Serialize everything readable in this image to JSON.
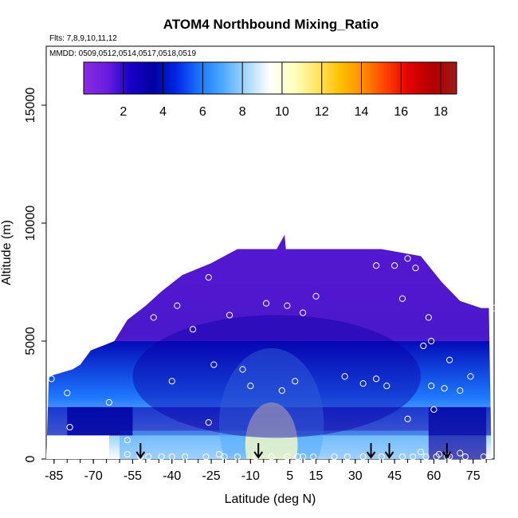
{
  "chart_data": {
    "type": "heatmap",
    "title": "ATOM4 Northbound Mixing_Ratio",
    "subtitle_flights": "Flts: 7,8,9,10,11,12",
    "subtitle_dates": "MMDD: 0509,0512,0514,0517,0518,0519",
    "xlabel": "Latitude (deg N)",
    "ylabel": "Altitude (m)",
    "xlim": [
      -88,
      83
    ],
    "ylim": [
      0,
      17500
    ],
    "x_ticks": [
      -85,
      -70,
      -55,
      -40,
      -25,
      -10,
      5,
      15,
      30,
      45,
      60,
      75
    ],
    "x_minor_step": 5,
    "y_ticks": [
      0,
      5000,
      10000,
      15000
    ],
    "colorbar": {
      "range": [
        0,
        18.8
      ],
      "ticks": [
        2,
        4,
        6,
        8,
        10,
        12,
        14,
        16,
        18
      ],
      "colors": [
        "#8a2be2",
        "#6a1de0",
        "#1a00c8",
        "#0000a0",
        "#0028e8",
        "#1e78ff",
        "#50aaff",
        "#a8d8ff",
        "#ffffff",
        "#ffffc0",
        "#ffe566",
        "#ffc000",
        "#ff8c00",
        "#ff3c00",
        "#e00000",
        "#b00000",
        "#a01a1a"
      ]
    },
    "envelope_top": [
      [
        -88,
        0
      ],
      [
        -87,
        3500
      ],
      [
        -78,
        3800
      ],
      [
        -75,
        4000
      ],
      [
        -71,
        4600
      ],
      [
        -62,
        5000
      ],
      [
        -57,
        5900
      ],
      [
        -50,
        6500
      ],
      [
        -44,
        7100
      ],
      [
        -36,
        7800
      ],
      [
        -25,
        8300
      ],
      [
        -15,
        8900
      ],
      [
        0,
        8900
      ],
      [
        3,
        9500
      ],
      [
        3.5,
        8900
      ],
      [
        20,
        8900
      ],
      [
        40,
        8900
      ],
      [
        55,
        8600
      ],
      [
        63,
        7500
      ],
      [
        70,
        6700
      ],
      [
        78,
        6400
      ],
      [
        81,
        6400
      ],
      [
        82,
        0
      ]
    ],
    "observations": [
      [
        -86,
        3400
      ],
      [
        -80,
        2800
      ],
      [
        -79,
        1350
      ],
      [
        -64,
        2400
      ],
      [
        -57,
        800
      ],
      [
        -57,
        200
      ],
      [
        -52,
        100
      ],
      [
        -49,
        100
      ],
      [
        -44,
        100
      ],
      [
        -40,
        100
      ],
      [
        -35,
        100
      ],
      [
        -27,
        100
      ],
      [
        -20,
        100
      ],
      [
        -15,
        100
      ],
      [
        -8,
        100
      ],
      [
        -2,
        100
      ],
      [
        4,
        100
      ],
      [
        8,
        100
      ],
      [
        10,
        100
      ],
      [
        14,
        100
      ],
      [
        22,
        100
      ],
      [
        27,
        100
      ],
      [
        33,
        100
      ],
      [
        40,
        100
      ],
      [
        48,
        100
      ],
      [
        52,
        100
      ],
      [
        57,
        100
      ],
      [
        61,
        100
      ],
      [
        66,
        100
      ],
      [
        72,
        100
      ],
      [
        79,
        100
      ],
      [
        -32,
        5500
      ],
      [
        -47,
        6000
      ],
      [
        -38,
        6500
      ],
      [
        -26,
        7700
      ],
      [
        -18,
        6100
      ],
      [
        -4,
        6600
      ],
      [
        4,
        6500
      ],
      [
        10,
        6200
      ],
      [
        15,
        6900
      ],
      [
        26,
        3500
      ],
      [
        33,
        3200
      ],
      [
        38,
        3400
      ],
      [
        42,
        3100
      ],
      [
        -10,
        3100
      ],
      [
        2,
        2900
      ],
      [
        7,
        3300
      ],
      [
        -13,
        3800
      ],
      [
        -24,
        4000
      ],
      [
        -26,
        1550
      ],
      [
        -40,
        3300
      ],
      [
        38,
        8200
      ],
      [
        45,
        8200
      ],
      [
        50,
        8500
      ],
      [
        48,
        6800
      ],
      [
        53,
        8100
      ],
      [
        58,
        6000
      ],
      [
        59,
        5000
      ],
      [
        59,
        3100
      ],
      [
        64,
        3000
      ],
      [
        70,
        2900
      ],
      [
        66,
        4200
      ],
      [
        74,
        3500
      ],
      [
        60,
        2100
      ],
      [
        50,
        1700
      ],
      [
        56,
        4800
      ],
      [
        62,
        200
      ],
      [
        70,
        250
      ],
      [
        83,
        6400
      ],
      [
        55,
        300
      ],
      [
        -22,
        200
      ],
      [
        65,
        100
      ]
    ],
    "profile_markers": [
      -52,
      -7,
      36,
      43,
      65
    ]
  }
}
